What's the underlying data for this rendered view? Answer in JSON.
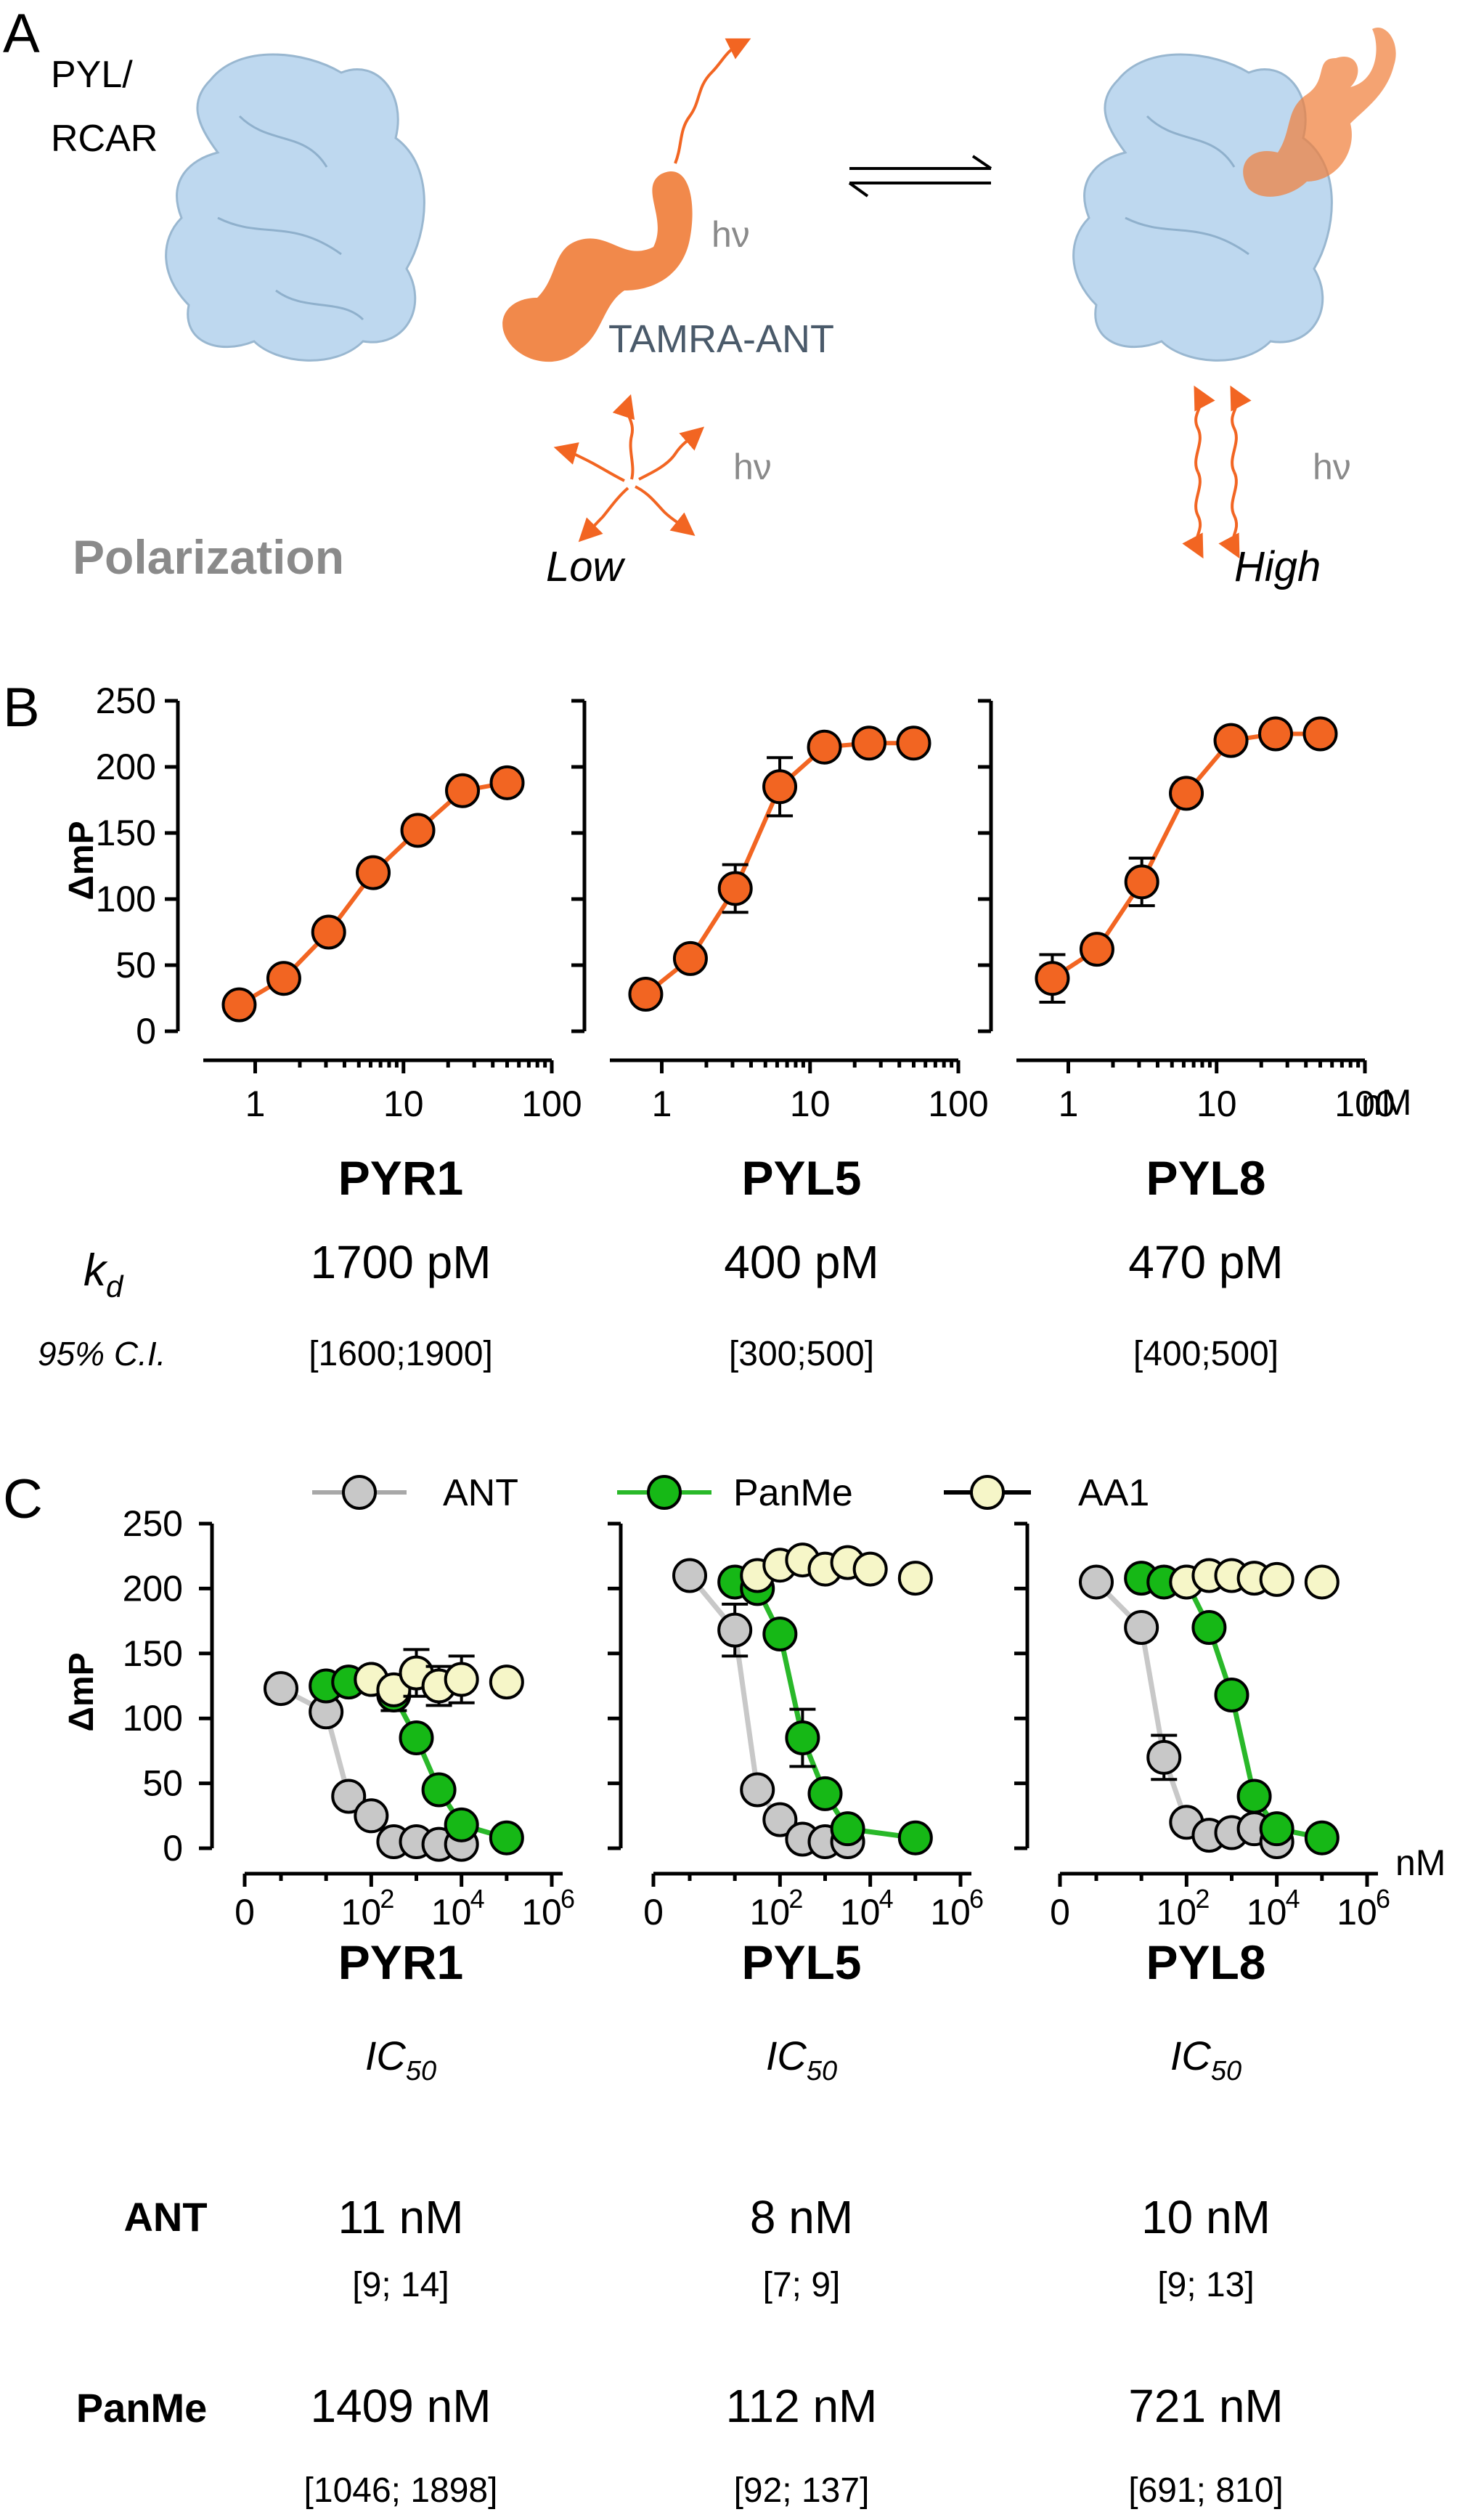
{
  "panel_a": {
    "letter": "A",
    "protein_label_line1": "PYL/",
    "protein_label_line2": "RCAR",
    "light_label": "hν",
    "probe_label": "TAMRA-ANT",
    "polarization_label": "Polarization",
    "state_low": "Low",
    "state_high": "High",
    "colors": {
      "protein": "#b8d4ee",
      "probe": "#f07f3c",
      "arrow": "#f26522",
      "gray_text": "#8a8a8a",
      "probe_text": "#4a5a6a"
    }
  },
  "chart_data": [
    {
      "panel": "B",
      "type": "scatter",
      "title": "PYR1",
      "xlabel": "",
      "ylabel": "ΔmP",
      "x_scale": "log",
      "xlim": [
        0.5,
        100
      ],
      "ylim": [
        0,
        250
      ],
      "x_ticks": [
        1,
        10,
        100
      ],
      "x_tick_labels": [
        "1",
        "10",
        "100"
      ],
      "y_ticks": [
        0,
        50,
        100,
        150,
        200,
        250
      ],
      "y_tick_labels": [
        "0",
        "50",
        "100",
        "150",
        "200",
        "250"
      ],
      "series": [
        {
          "name": "TAMRA-ANT",
          "color": "#f26522",
          "x": [
            0.78,
            1.56,
            3.13,
            6.25,
            12.5,
            25,
            50
          ],
          "y": [
            20,
            40,
            75,
            120,
            152,
            182,
            188
          ],
          "err": [
            3,
            3,
            4,
            5,
            6,
            6,
            6
          ]
        }
      ]
    },
    {
      "panel": "B",
      "type": "scatter",
      "title": "PYL5",
      "x_scale": "log",
      "xlim": [
        0.5,
        100
      ],
      "ylim": [
        0,
        250
      ],
      "x_ticks": [
        1,
        10,
        100
      ],
      "x_tick_labels": [
        "1",
        "10",
        "100"
      ],
      "series": [
        {
          "name": "TAMRA-ANT",
          "color": "#f26522",
          "x": [
            0.78,
            1.56,
            3.13,
            6.25,
            12.5,
            25,
            50
          ],
          "y": [
            28,
            55,
            108,
            185,
            215,
            218,
            218
          ],
          "err": [
            5,
            4,
            18,
            22,
            5,
            5,
            4
          ]
        }
      ]
    },
    {
      "panel": "B",
      "type": "scatter",
      "title": "PYL8",
      "x_scale": "log",
      "xlim": [
        0.5,
        100
      ],
      "ylim": [
        0,
        250
      ],
      "x_ticks": [
        1,
        10,
        100
      ],
      "x_tick_labels": [
        "1",
        "10",
        "100"
      ],
      "series": [
        {
          "name": "TAMRA-ANT",
          "color": "#f26522",
          "x": [
            0.78,
            1.56,
            3.13,
            6.25,
            12.5,
            25,
            50
          ],
          "y": [
            40,
            62,
            113,
            180,
            220,
            225,
            225
          ],
          "err": [
            18,
            4,
            18,
            6,
            5,
            5,
            4
          ]
        }
      ]
    },
    {
      "panel": "C",
      "type": "scatter",
      "title": "PYR1",
      "ylabel": "ΔmP",
      "x_scale": "log_with_zero",
      "ylim": [
        0,
        250
      ],
      "x_ticks": [
        0,
        100,
        10000,
        1000000
      ],
      "x_tick_labels": [
        "0",
        "10",
        "2",
        "10",
        "4",
        "10",
        "6"
      ],
      "series": [
        {
          "name": "ANT",
          "color": "#c8c8c8",
          "line": "#b0b0b0",
          "x": [
            1,
            10,
            31.6,
            100,
            316,
            1000,
            3162,
            10000
          ],
          "y": [
            123,
            105,
            40,
            25,
            5,
            5,
            3,
            3
          ],
          "err": [
            3,
            3,
            3,
            3,
            3,
            3,
            3,
            3
          ]
        },
        {
          "name": "PanMe",
          "color": "#16b816",
          "line": "#29b829",
          "x": [
            10,
            31.6,
            100,
            316,
            1000,
            3162,
            10000,
            100000
          ],
          "y": [
            125,
            128,
            130,
            118,
            85,
            45,
            18,
            8
          ],
          "err": [
            4,
            4,
            4,
            12,
            5,
            5,
            4,
            3
          ]
        },
        {
          "name": "AA1",
          "color": "#f6f6c8",
          "line": "#000000",
          "x": [
            100,
            316,
            1000,
            3162,
            10000,
            100000
          ],
          "y": [
            130,
            122,
            135,
            125,
            130,
            128
          ],
          "err": [
            6,
            8,
            18,
            15,
            18,
            8
          ]
        }
      ]
    },
    {
      "panel": "C",
      "type": "scatter",
      "title": "PYL5",
      "x_scale": "log_with_zero",
      "ylim": [
        0,
        250
      ],
      "x_ticks": [
        0,
        100,
        10000,
        1000000
      ],
      "x_tick_labels": [
        "0",
        "10",
        "2",
        "10",
        "4",
        "10",
        "6"
      ],
      "series": [
        {
          "name": "ANT",
          "color": "#c8c8c8",
          "line": "#b0b0b0",
          "x": [
            1,
            10,
            31.6,
            100,
            316,
            1000,
            3162
          ],
          "y": [
            210,
            168,
            45,
            22,
            7,
            5,
            5
          ],
          "err": [
            4,
            20,
            6,
            4,
            3,
            3,
            3
          ]
        },
        {
          "name": "PanMe",
          "color": "#16b816",
          "line": "#29b829",
          "x": [
            10,
            31.6,
            100,
            316,
            1000,
            3162,
            100000
          ],
          "y": [
            205,
            200,
            165,
            85,
            42,
            15,
            8
          ],
          "err": [
            5,
            5,
            6,
            22,
            6,
            4,
            3
          ]
        },
        {
          "name": "AA1",
          "color": "#f6f6c8",
          "line": "#000000",
          "x": [
            31.6,
            100,
            316,
            1000,
            3162,
            10000,
            100000
          ],
          "y": [
            210,
            218,
            222,
            215,
            220,
            215,
            208
          ],
          "err": [
            4,
            4,
            4,
            4,
            4,
            4,
            4
          ]
        }
      ]
    },
    {
      "panel": "C",
      "type": "scatter",
      "title": "PYL8",
      "x_scale": "log_with_zero",
      "ylim": [
        0,
        250
      ],
      "x_ticks": [
        0,
        100,
        10000,
        1000000
      ],
      "x_tick_labels": [
        "0",
        "10",
        "2",
        "10",
        "4",
        "10",
        "6"
      ],
      "series": [
        {
          "name": "ANT",
          "color": "#c8c8c8",
          "line": "#b0b0b0",
          "x": [
            1,
            10,
            31.6,
            100,
            316,
            1000,
            3162,
            10000
          ],
          "y": [
            205,
            170,
            70,
            20,
            10,
            12,
            15,
            5
          ],
          "err": [
            3,
            3,
            17,
            5,
            3,
            3,
            3,
            3
          ]
        },
        {
          "name": "PanMe",
          "color": "#16b816",
          "line": "#29b829",
          "x": [
            10,
            31.6,
            100,
            316,
            1000,
            3162,
            10000,
            100000
          ],
          "y": [
            208,
            205,
            205,
            170,
            118,
            40,
            15,
            8
          ],
          "err": [
            4,
            4,
            4,
            5,
            5,
            5,
            4,
            3
          ]
        },
        {
          "name": "AA1",
          "color": "#f6f6c8",
          "line": "#000000",
          "x": [
            100,
            316,
            1000,
            3162,
            10000,
            100000
          ],
          "y": [
            205,
            210,
            210,
            208,
            207,
            205
          ],
          "err": [
            4,
            4,
            4,
            4,
            4,
            4
          ]
        }
      ]
    }
  ],
  "panel_b": {
    "letter": "B",
    "ylabel": "ΔmP",
    "unit": "nM",
    "kd_label": "k",
    "kd_sub": "d",
    "ci_label": "95% C.I.",
    "proteins": [
      {
        "name": "PYR1",
        "kd": "1700 pM",
        "ci": "[1600;1900]"
      },
      {
        "name": "PYL5",
        "kd": "400 pM",
        "ci": "[300;500]"
      },
      {
        "name": "PYL8",
        "kd": "470 pM",
        "ci": "[400;500]"
      }
    ]
  },
  "panel_c": {
    "letter": "C",
    "ylabel": "ΔmP",
    "unit": "nM",
    "legend": [
      {
        "name": "ANT",
        "fill": "#c8c8c8",
        "line": "#a8a8a8"
      },
      {
        "name": "PanMe",
        "fill": "#16b816",
        "line": "#29b829"
      },
      {
        "name": "AA1",
        "fill": "#f6f6c8",
        "line": "#000000"
      }
    ],
    "ic50_label": "IC",
    "ic50_sub": "50",
    "row_ant": "ANT",
    "row_panme": "PanMe",
    "proteins": [
      {
        "name": "PYR1",
        "ant": "11 nM",
        "ant_ci": "[9; 14]",
        "panme": "1409 nM",
        "panme_ci": "[1046; 1898]"
      },
      {
        "name": "PYL5",
        "ant": "8 nM",
        "ant_ci": "[7; 9]",
        "panme": "112 nM",
        "panme_ci": "[92; 137]"
      },
      {
        "name": "PYL8",
        "ant": "10 nM",
        "ant_ci": "[9; 13]",
        "panme": "721 nM",
        "panme_ci": "[691; 810]"
      }
    ]
  }
}
